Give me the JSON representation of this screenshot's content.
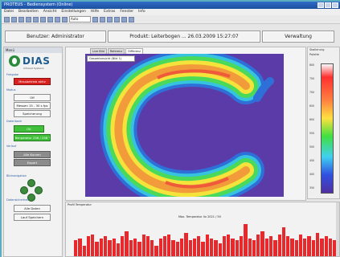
{
  "window": {
    "title": "PROTEUS - Bediensystem (Online)"
  },
  "menu": [
    "Datei",
    "Bearbeiten",
    "Ansicht",
    "Einstellungen",
    "Hilfe",
    "Extras",
    "Fenster",
    "Info"
  ],
  "toolbar": {
    "zoom_value": "Auto"
  },
  "header": {
    "user": "Benutzer: Administrator",
    "product": "Produkt: Leiterbogen ... 26.03.2009 15:27:07",
    "admin": "Verwaltung"
  },
  "left": {
    "title": "Menü",
    "logo": {
      "name": "DIAS",
      "tagline": "Infrared Systems"
    },
    "status_section": "Freigabe",
    "status_button": "Messbetrieb aktiv",
    "mode_section": "Modus",
    "mode_button": "Off",
    "meas_button": "Messen 15 - 30 s fps",
    "store_button": "Speicherung",
    "bath_section": "Datenbank",
    "ok_label": "OK",
    "temp_label": "Temperatur 256 / 256 °C",
    "hist_section": "Verlauf",
    "hist_button1": "Alle Kurven",
    "hist_button2": "Export",
    "nav_section": "Bildnavigation",
    "data_section": "Datensicherheit",
    "exit_button": "Alle Daten",
    "logout_button": "Lauf Speichern"
  },
  "main": {
    "tabs": [
      "Live Bild",
      "Referenz",
      "Differenz"
    ],
    "active_tab": "Differenz",
    "selector": "Gesamtansicht (Bild 1)"
  },
  "right": {
    "title": "Skalierung",
    "header": "Palette",
    "ticks": [
      "800",
      "750",
      "700",
      "650",
      "600",
      "550",
      "500",
      "450",
      "400",
      "350"
    ]
  },
  "bottom": {
    "title": "Profil Temperatur",
    "chart_title": "Max. Temperatur 4x 2021 / 50"
  },
  "chart_data": {
    "type": "bar",
    "values": [
      0.45,
      0.5,
      0.3,
      0.55,
      0.6,
      0.4,
      0.5,
      0.55,
      0.45,
      0.5,
      0.35,
      0.55,
      0.7,
      0.45,
      0.5,
      0.4,
      0.6,
      0.55,
      0.45,
      0.3,
      0.5,
      0.55,
      0.6,
      0.45,
      0.4,
      0.5,
      0.65,
      0.45,
      0.5,
      0.55,
      0.4,
      0.6,
      0.5,
      0.45,
      0.35,
      0.55,
      0.6,
      0.5,
      0.45,
      0.55,
      0.9,
      0.5,
      0.45,
      0.6,
      0.7,
      0.5,
      0.55,
      0.45,
      0.6,
      0.8,
      0.55,
      0.5,
      0.45,
      0.6,
      0.5,
      0.55,
      0.45,
      0.65,
      0.5,
      0.55,
      0.5,
      0.45
    ],
    "color": "#e8282a"
  }
}
